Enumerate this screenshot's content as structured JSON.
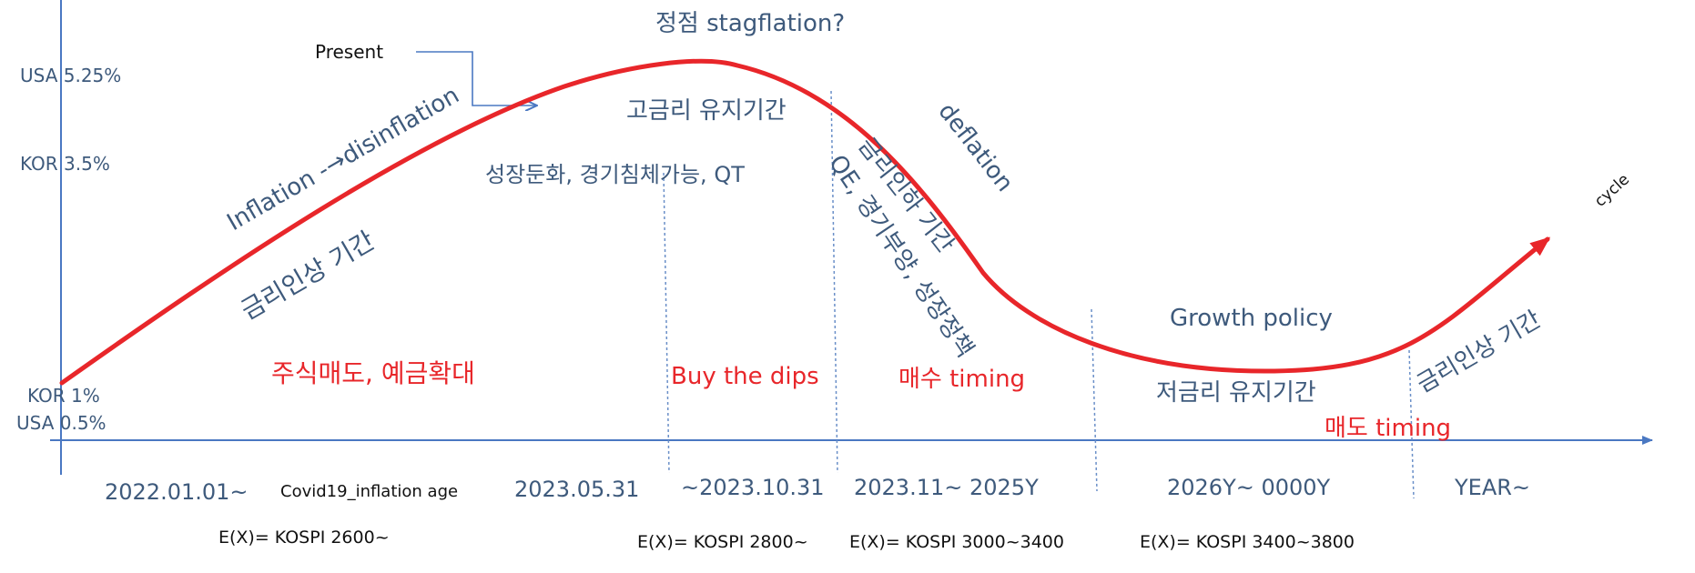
{
  "colors": {
    "curve": "#e8262a",
    "text_blue": "#3e5a7c",
    "text_red": "#e8262a",
    "axis": "#4a78c2",
    "dashed": "#6a8fc8",
    "pointer": "#4a78c2"
  },
  "y_labels": {
    "usa_high": "USA 5.25%",
    "kor_high": "KOR 3.5%",
    "kor_low": "KOR 1%",
    "usa_low": "USA 0.5%"
  },
  "top": {
    "peak": "정점 stagflation?",
    "present": "Present"
  },
  "curve_labels": {
    "inflation": "Inflation -→disinflation",
    "rate_hike": "금리인상 기간",
    "high_rate_hold": "고금리 유지기간",
    "slowdown": "성장둔화, 경기침체가능, QT",
    "deflation": "deflation",
    "rate_cut": "금리인하 기간",
    "qe": "QE, 경기부양, 성장정책",
    "growth_policy": "Growth policy",
    "low_rate_hold": "저금리 유지기간",
    "rate_hike_2": "금리인상 기간",
    "cycle": "cycle"
  },
  "actions": {
    "sell_stock": "주식매도, 예금확대",
    "buy_dips": "Buy the dips",
    "buy_timing": "매수 timing",
    "sell_timing": "매도 timing"
  },
  "periods": {
    "p1": "2022.01.01~",
    "p1_note": "Covid19_inflation age",
    "p2": "2023.05.31",
    "p3": "~2023.10.31",
    "p4": "2023.11~ 2025Y",
    "p5": "2026Y~ 0000Y",
    "p6": "YEAR~"
  },
  "expectations": {
    "e1": "E(X)= KOSPI 2600~",
    "e2": "E(X)= KOSPI 2800~",
    "e3": "E(X)= KOSPI 3000~3400",
    "e4": "E(X)= KOSPI 3400~3800"
  }
}
